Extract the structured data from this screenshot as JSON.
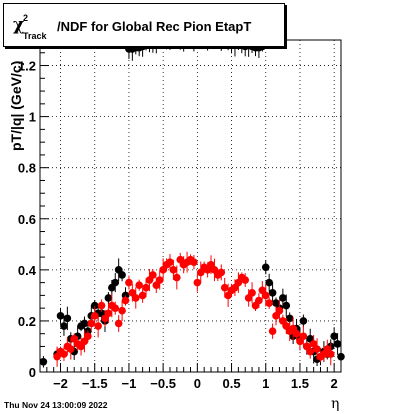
{
  "title": {
    "chi": "χ",
    "sup": "2",
    "sub": "Track",
    "rest": "/NDF for Global Rec Pion EtapT"
  },
  "axes": {
    "ylabel": "pT/|q| (GeV/c)",
    "xlabel": "η"
  },
  "timestamp": "Thu Nov 24 13:00:09 2022",
  "colors": {
    "series_black": "#000000",
    "series_red": "#ff0000",
    "grid": "#000000"
  },
  "chart_data": {
    "type": "scatter",
    "xlim": [
      -2.3,
      2.1
    ],
    "ylim": [
      0,
      1.3
    ],
    "grid": true,
    "x_ticks": [
      {
        "v": -2,
        "label": "−2"
      },
      {
        "v": -1.5,
        "label": "−1.5"
      },
      {
        "v": -1,
        "label": "−1"
      },
      {
        "v": -0.5,
        "label": "−0.5"
      },
      {
        "v": 0,
        "label": "0"
      },
      {
        "v": 0.5,
        "label": "0.5"
      },
      {
        "v": 1,
        "label": "1"
      },
      {
        "v": 1.5,
        "label": "1.5"
      },
      {
        "v": 2,
        "label": "2"
      }
    ],
    "y_ticks": [
      {
        "v": 0,
        "label": "0"
      },
      {
        "v": 0.2,
        "label": "0.2"
      },
      {
        "v": 0.4,
        "label": "0.4"
      },
      {
        "v": 0.6,
        "label": "0.6"
      },
      {
        "v": 0.8,
        "label": "0.8"
      },
      {
        "v": 1,
        "label": "1"
      },
      {
        "v": 1.2,
        "label": "1.2"
      }
    ],
    "series": [
      {
        "color": "#000000",
        "points": [
          [
            -2.25,
            0.04
          ],
          [
            -2.05,
            0.07
          ],
          [
            -2.0,
            0.22
          ],
          [
            -1.95,
            0.18
          ],
          [
            -1.9,
            0.21
          ],
          [
            -1.85,
            0.13
          ],
          [
            -1.8,
            0.08
          ],
          [
            -1.75,
            0.14
          ],
          [
            -1.7,
            0.18
          ],
          [
            -1.65,
            0.19
          ],
          [
            -1.6,
            0.16
          ],
          [
            -1.55,
            0.22
          ],
          [
            -1.5,
            0.26
          ],
          [
            -1.45,
            0.23
          ],
          [
            -1.4,
            0.23
          ],
          [
            -1.35,
            0.2
          ],
          [
            -1.3,
            0.29
          ],
          [
            -1.25,
            0.33
          ],
          [
            -1.2,
            0.35
          ],
          [
            -1.15,
            0.4
          ],
          [
            -1.1,
            0.38
          ],
          [
            -1.05,
            0.3
          ],
          [
            -1.0,
            1.265
          ],
          [
            -0.95,
            1.265
          ],
          [
            -0.9,
            1.27
          ],
          [
            -0.85,
            1.27
          ],
          [
            -0.8,
            1.275
          ],
          [
            -0.75,
            1.28
          ],
          [
            -0.7,
            1.28
          ],
          [
            -0.65,
            1.285
          ],
          [
            -0.6,
            1.29
          ],
          [
            -0.55,
            1.295
          ],
          [
            -0.5,
            1.3
          ],
          [
            -0.45,
            1.3
          ],
          [
            -0.4,
            1.305
          ],
          [
            -0.35,
            1.3
          ],
          [
            -0.3,
            1.305
          ],
          [
            -0.25,
            1.3
          ],
          [
            -0.2,
            1.3
          ],
          [
            -0.15,
            1.305
          ],
          [
            -0.1,
            1.3
          ],
          [
            -0.05,
            1.295
          ],
          [
            0.0,
            1.3
          ],
          [
            0.05,
            1.305
          ],
          [
            0.1,
            1.3
          ],
          [
            0.15,
            1.3
          ],
          [
            0.2,
            1.305
          ],
          [
            0.25,
            1.3
          ],
          [
            0.3,
            1.305
          ],
          [
            0.35,
            1.3
          ],
          [
            0.4,
            1.3
          ],
          [
            0.45,
            1.29
          ],
          [
            0.5,
            1.285
          ],
          [
            0.55,
            1.28
          ],
          [
            0.6,
            1.285
          ],
          [
            0.65,
            1.28
          ],
          [
            0.7,
            1.275
          ],
          [
            0.75,
            1.28
          ],
          [
            0.8,
            1.275
          ],
          [
            0.85,
            1.27
          ],
          [
            0.9,
            1.27
          ],
          [
            0.95,
            1.275
          ],
          [
            1.0,
            0.41
          ],
          [
            1.05,
            0.35
          ],
          [
            1.1,
            0.31
          ],
          [
            1.15,
            0.27
          ],
          [
            1.2,
            0.25
          ],
          [
            1.25,
            0.29
          ],
          [
            1.3,
            0.26
          ],
          [
            1.35,
            0.21
          ],
          [
            1.4,
            0.14
          ],
          [
            1.45,
            0.17
          ],
          [
            1.5,
            0.13
          ],
          [
            1.55,
            0.2
          ],
          [
            1.6,
            0.1
          ],
          [
            1.65,
            0.13
          ],
          [
            1.7,
            0.08
          ],
          [
            1.75,
            0.05
          ],
          [
            1.8,
            0.06
          ],
          [
            1.85,
            0.08
          ],
          [
            1.9,
            0.07
          ],
          [
            1.95,
            0.1
          ],
          [
            2.0,
            0.14
          ],
          [
            2.05,
            0.11
          ],
          [
            2.1,
            0.06
          ]
        ]
      },
      {
        "color": "#ff0000",
        "points": [
          [
            -2.05,
            0.06
          ],
          [
            -2.0,
            0.08
          ],
          [
            -1.95,
            0.07
          ],
          [
            -1.9,
            0.1
          ],
          [
            -1.85,
            0.09
          ],
          [
            -1.8,
            0.13
          ],
          [
            -1.75,
            0.11
          ],
          [
            -1.7,
            0.1
          ],
          [
            -1.65,
            0.12
          ],
          [
            -1.6,
            0.14
          ],
          [
            -1.55,
            0.19
          ],
          [
            -1.5,
            0.22
          ],
          [
            -1.45,
            0.18
          ],
          [
            -1.4,
            0.26
          ],
          [
            -1.35,
            0.21
          ],
          [
            -1.3,
            0.23
          ],
          [
            -1.25,
            0.26
          ],
          [
            -1.2,
            0.25
          ],
          [
            -1.15,
            0.19
          ],
          [
            -1.1,
            0.24
          ],
          [
            -1.05,
            0.28
          ],
          [
            -1.0,
            0.35
          ],
          [
            -0.95,
            0.31
          ],
          [
            -0.9,
            0.29
          ],
          [
            -0.85,
            0.34
          ],
          [
            -0.8,
            0.3
          ],
          [
            -0.75,
            0.33
          ],
          [
            -0.7,
            0.36
          ],
          [
            -0.65,
            0.38
          ],
          [
            -0.6,
            0.34
          ],
          [
            -0.55,
            0.36
          ],
          [
            -0.5,
            0.4
          ],
          [
            -0.45,
            0.42
          ],
          [
            -0.4,
            0.43
          ],
          [
            -0.35,
            0.4
          ],
          [
            -0.3,
            0.37
          ],
          [
            -0.25,
            0.44
          ],
          [
            -0.2,
            0.42
          ],
          [
            -0.15,
            0.43
          ],
          [
            -0.1,
            0.44
          ],
          [
            -0.05,
            0.43
          ],
          [
            0.0,
            0.35
          ],
          [
            0.05,
            0.39
          ],
          [
            0.1,
            0.41
          ],
          [
            0.15,
            0.4
          ],
          [
            0.2,
            0.42
          ],
          [
            0.25,
            0.4
          ],
          [
            0.3,
            0.38
          ],
          [
            0.35,
            0.39
          ],
          [
            0.4,
            0.33
          ],
          [
            0.45,
            0.3
          ],
          [
            0.5,
            0.32
          ],
          [
            0.55,
            0.33
          ],
          [
            0.6,
            0.35
          ],
          [
            0.65,
            0.37
          ],
          [
            0.7,
            0.36
          ],
          [
            0.75,
            0.29
          ],
          [
            0.8,
            0.31
          ],
          [
            0.85,
            0.26
          ],
          [
            0.9,
            0.28
          ],
          [
            0.95,
            0.32
          ],
          [
            1.0,
            0.3
          ],
          [
            1.05,
            0.27
          ],
          [
            1.1,
            0.16
          ],
          [
            1.15,
            0.22
          ],
          [
            1.2,
            0.24
          ],
          [
            1.25,
            0.2
          ],
          [
            1.3,
            0.18
          ],
          [
            1.35,
            0.16
          ],
          [
            1.4,
            0.17
          ],
          [
            1.45,
            0.15
          ],
          [
            1.5,
            0.12
          ],
          [
            1.55,
            0.14
          ],
          [
            1.6,
            0.1
          ],
          [
            1.65,
            0.08
          ],
          [
            1.7,
            0.11
          ],
          [
            1.75,
            0.09
          ],
          [
            1.8,
            0.06
          ],
          [
            1.85,
            0.07
          ],
          [
            1.9,
            0.09
          ],
          [
            1.95,
            0.07
          ]
        ]
      }
    ]
  }
}
